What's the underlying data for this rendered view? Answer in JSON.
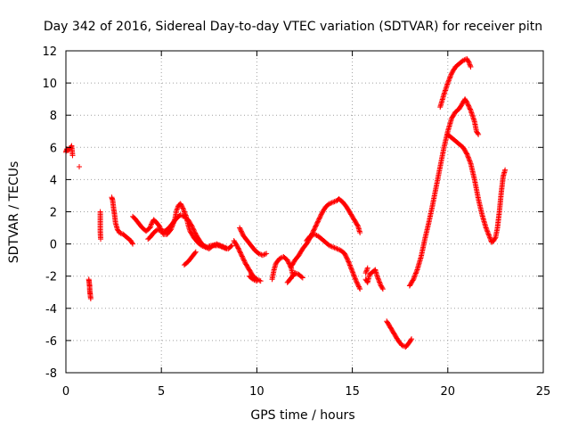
{
  "chart_data": {
    "type": "scatter",
    "title": "Day 342 of 2016, Sidereal Day-to-day VTEC variation (SDTVAR) for receiver pitn",
    "xlabel": "GPS time / hours",
    "ylabel": "SDTVAR / TECUs",
    "xlim": [
      0,
      25
    ],
    "ylim": [
      -8,
      12
    ],
    "xticks": [
      0,
      5,
      10,
      15,
      20,
      25
    ],
    "yticks": [
      -8,
      -6,
      -4,
      -2,
      0,
      2,
      4,
      6,
      8,
      10,
      12
    ],
    "xtick_labels": [
      "0",
      "5",
      "10",
      "15",
      "20",
      "25"
    ],
    "ytick_labels": [
      "-8",
      "-6",
      "-4",
      "-2",
      "0",
      "2",
      "4",
      "6",
      "8",
      "10",
      "12"
    ],
    "grid": true,
    "marker": "+",
    "color": "#ff0000",
    "series": [
      {
        "name": "SDTVAR",
        "segments": [
          [
            [
              0.0,
              5.7
            ],
            [
              0.05,
              5.9
            ],
            [
              0.1,
              5.8
            ],
            [
              0.2,
              5.9
            ],
            [
              0.3,
              6.1
            ],
            [
              0.35,
              5.5
            ],
            [
              0.7,
              4.8
            ]
          ],
          [
            [
              1.2,
              -2.2
            ],
            [
              1.22,
              -2.4
            ],
            [
              1.24,
              -2.6
            ],
            [
              1.25,
              -2.9
            ],
            [
              1.27,
              -3.1
            ],
            [
              1.3,
              -3.4
            ]
          ],
          [
            [
              1.8,
              2.0
            ],
            [
              1.8,
              0.8
            ],
            [
              1.82,
              0.3
            ]
          ],
          [
            [
              2.4,
              2.9
            ],
            [
              2.45,
              2.7
            ],
            [
              2.5,
              2.2
            ],
            [
              2.55,
              1.8
            ],
            [
              2.6,
              1.3
            ],
            [
              2.7,
              0.9
            ],
            [
              2.8,
              0.7
            ],
            [
              3.0,
              0.6
            ],
            [
              3.2,
              0.4
            ],
            [
              3.4,
              0.2
            ],
            [
              3.5,
              0.0
            ]
          ],
          [
            [
              3.5,
              1.7
            ],
            [
              3.6,
              1.6
            ],
            [
              3.8,
              1.3
            ],
            [
              4.0,
              1.0
            ],
            [
              4.2,
              0.8
            ],
            [
              4.4,
              1.0
            ],
            [
              4.5,
              1.3
            ],
            [
              4.6,
              1.5
            ],
            [
              4.7,
              1.4
            ],
            [
              4.9,
              1.1
            ],
            [
              5.1,
              0.6
            ],
            [
              5.3,
              0.6
            ],
            [
              5.5,
              0.9
            ],
            [
              5.7,
              1.5
            ],
            [
              5.8,
              2.1
            ],
            [
              5.9,
              2.4
            ],
            [
              6.0,
              2.5
            ],
            [
              6.1,
              2.3
            ],
            [
              6.3,
              1.7
            ],
            [
              6.4,
              1.2
            ],
            [
              6.5,
              0.8
            ],
            [
              6.7,
              0.4
            ],
            [
              6.9,
              0.1
            ],
            [
              7.1,
              -0.1
            ],
            [
              7.3,
              -0.2
            ],
            [
              7.5,
              -0.3
            ],
            [
              7.7,
              -0.1
            ],
            [
              7.9,
              0.0
            ],
            [
              8.1,
              -0.1
            ],
            [
              8.3,
              -0.2
            ],
            [
              8.5,
              -0.3
            ],
            [
              8.7,
              -0.1
            ]
          ],
          [
            [
              4.3,
              0.3
            ],
            [
              4.4,
              0.4
            ],
            [
              4.6,
              0.7
            ],
            [
              4.8,
              0.9
            ],
            [
              5.0,
              0.8
            ],
            [
              5.2,
              0.8
            ],
            [
              5.4,
              1.0
            ],
            [
              5.6,
              1.3
            ],
            [
              5.8,
              1.6
            ],
            [
              6.0,
              1.8
            ],
            [
              6.2,
              1.7
            ],
            [
              6.4,
              1.5
            ],
            [
              6.6,
              1.1
            ],
            [
              6.8,
              0.6
            ],
            [
              7.0,
              0.2
            ],
            [
              7.2,
              -0.1
            ],
            [
              7.4,
              -0.2
            ],
            [
              7.6,
              -0.1
            ],
            [
              7.8,
              -0.1
            ],
            [
              8.0,
              -0.1
            ],
            [
              8.2,
              -0.2
            ],
            [
              8.4,
              -0.3
            ]
          ],
          [
            [
              6.2,
              -1.3
            ],
            [
              6.4,
              -1.1
            ],
            [
              6.6,
              -0.8
            ],
            [
              6.8,
              -0.5
            ]
          ],
          [
            [
              8.8,
              0.2
            ],
            [
              9.0,
              -0.2
            ],
            [
              9.2,
              -0.7
            ],
            [
              9.4,
              -1.2
            ],
            [
              9.6,
              -1.6
            ],
            [
              9.8,
              -2.0
            ],
            [
              10.0,
              -2.2
            ],
            [
              10.2,
              -2.3
            ]
          ],
          [
            [
              9.1,
              1.0
            ],
            [
              9.3,
              0.5
            ],
            [
              9.5,
              0.2
            ],
            [
              9.7,
              -0.1
            ],
            [
              9.9,
              -0.4
            ],
            [
              10.1,
              -0.6
            ],
            [
              10.3,
              -0.7
            ],
            [
              10.5,
              -0.6
            ]
          ],
          [
            [
              9.6,
              -2.0
            ],
            [
              9.8,
              -2.2
            ],
            [
              10.0,
              -2.3
            ]
          ],
          [
            [
              10.8,
              -2.2
            ],
            [
              10.9,
              -1.6
            ],
            [
              11.0,
              -1.2
            ],
            [
              11.2,
              -0.9
            ],
            [
              11.4,
              -0.8
            ],
            [
              11.6,
              -1.0
            ],
            [
              11.8,
              -1.5
            ],
            [
              11.9,
              -2.0
            ]
          ],
          [
            [
              11.6,
              -2.4
            ],
            [
              11.8,
              -2.1
            ],
            [
              12.0,
              -1.8
            ],
            [
              12.2,
              -1.9
            ],
            [
              12.4,
              -2.1
            ]
          ],
          [
            [
              11.8,
              -1.4
            ],
            [
              12.0,
              -1.0
            ],
            [
              12.2,
              -0.7
            ],
            [
              12.4,
              -0.3
            ],
            [
              12.6,
              0.0
            ],
            [
              12.8,
              0.4
            ],
            [
              13.0,
              0.9
            ],
            [
              13.2,
              1.4
            ],
            [
              13.4,
              1.9
            ],
            [
              13.6,
              2.3
            ],
            [
              13.8,
              2.5
            ],
            [
              14.0,
              2.6
            ],
            [
              14.2,
              2.7
            ],
            [
              14.3,
              2.8
            ],
            [
              14.5,
              2.6
            ],
            [
              14.7,
              2.3
            ],
            [
              14.9,
              1.9
            ],
            [
              15.1,
              1.5
            ],
            [
              15.3,
              1.1
            ],
            [
              15.4,
              0.7
            ]
          ],
          [
            [
              12.6,
              0.2
            ],
            [
              12.8,
              0.5
            ],
            [
              13.0,
              0.6
            ],
            [
              13.2,
              0.5
            ],
            [
              13.4,
              0.3
            ],
            [
              13.6,
              0.1
            ],
            [
              13.8,
              -0.1
            ],
            [
              14.0,
              -0.2
            ],
            [
              14.2,
              -0.3
            ],
            [
              14.4,
              -0.4
            ],
            [
              14.6,
              -0.6
            ],
            [
              14.8,
              -1.1
            ],
            [
              15.0,
              -1.7
            ],
            [
              15.2,
              -2.3
            ],
            [
              15.4,
              -2.8
            ]
          ],
          [
            [
              15.7,
              -2.2
            ],
            [
              15.8,
              -2.4
            ],
            [
              15.9,
              -1.9
            ],
            [
              16.2,
              -1.6
            ],
            [
              16.3,
              -2.0
            ],
            [
              16.4,
              -2.3
            ],
            [
              16.5,
              -2.6
            ],
            [
              16.6,
              -2.8
            ]
          ],
          [
            [
              15.7,
              -1.8
            ],
            [
              15.8,
              -1.5
            ]
          ],
          [
            [
              16.8,
              -4.8
            ],
            [
              16.9,
              -5.0
            ],
            [
              17.0,
              -5.2
            ],
            [
              17.2,
              -5.6
            ],
            [
              17.4,
              -6.0
            ],
            [
              17.6,
              -6.3
            ],
            [
              17.8,
              -6.4
            ],
            [
              18.0,
              -6.1
            ],
            [
              18.1,
              -5.9
            ]
          ],
          [
            [
              18.0,
              -2.6
            ],
            [
              18.2,
              -2.2
            ],
            [
              18.4,
              -1.6
            ],
            [
              18.6,
              -0.8
            ],
            [
              18.8,
              0.3
            ],
            [
              19.0,
              1.3
            ],
            [
              19.2,
              2.4
            ],
            [
              19.4,
              3.6
            ],
            [
              19.6,
              4.8
            ],
            [
              19.8,
              6.0
            ],
            [
              20.0,
              7.0
            ],
            [
              20.2,
              7.8
            ],
            [
              20.4,
              8.2
            ],
            [
              20.6,
              8.4
            ],
            [
              20.8,
              8.8
            ],
            [
              20.9,
              9.0
            ],
            [
              21.0,
              8.8
            ],
            [
              21.2,
              8.3
            ],
            [
              21.4,
              7.6
            ],
            [
              21.5,
              7.0
            ],
            [
              21.6,
              6.8
            ]
          ],
          [
            [
              19.6,
              8.5
            ],
            [
              19.8,
              9.3
            ],
            [
              20.0,
              10.0
            ],
            [
              20.2,
              10.6
            ],
            [
              20.4,
              11.0
            ],
            [
              20.6,
              11.2
            ],
            [
              20.8,
              11.4
            ],
            [
              21.0,
              11.5
            ],
            [
              21.1,
              11.3
            ],
            [
              21.2,
              11.0
            ]
          ],
          [
            [
              20.0,
              6.8
            ],
            [
              20.2,
              6.6
            ],
            [
              20.4,
              6.4
            ],
            [
              20.6,
              6.2
            ],
            [
              20.8,
              6.0
            ],
            [
              21.0,
              5.6
            ],
            [
              21.2,
              5.0
            ],
            [
              21.4,
              4.0
            ],
            [
              21.6,
              2.8
            ],
            [
              21.8,
              1.8
            ],
            [
              22.0,
              1.0
            ],
            [
              22.2,
              0.4
            ],
            [
              22.3,
              0.1
            ],
            [
              22.4,
              0.2
            ],
            [
              22.5,
              0.4
            ],
            [
              22.6,
              1.0
            ],
            [
              22.7,
              2.0
            ],
            [
              22.8,
              3.2
            ],
            [
              22.9,
              4.2
            ],
            [
              23.0,
              4.6
            ]
          ]
        ]
      }
    ]
  }
}
